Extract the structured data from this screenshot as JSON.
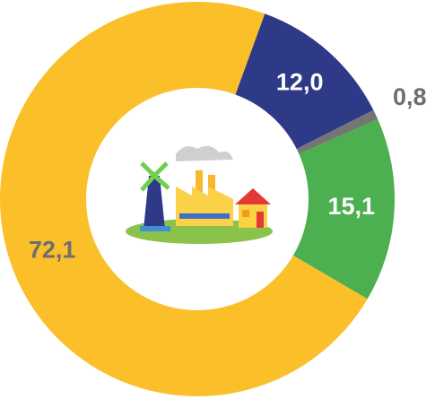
{
  "chart_data": {
    "type": "donut",
    "categories": [
      null,
      null,
      null,
      null
    ],
    "values": [
      12.0,
      0.8,
      15.1,
      72.1
    ],
    "value_labels": [
      "12,0",
      "0,8",
      "15,1",
      "72,1"
    ],
    "colors": [
      "#2e3a87",
      "#757575",
      "#4caf50",
      "#fbbf2a"
    ],
    "label_colors": [
      "#ffffff",
      "#6e6e6e",
      "#ffffff",
      "#6e6e6e"
    ]
  }
}
